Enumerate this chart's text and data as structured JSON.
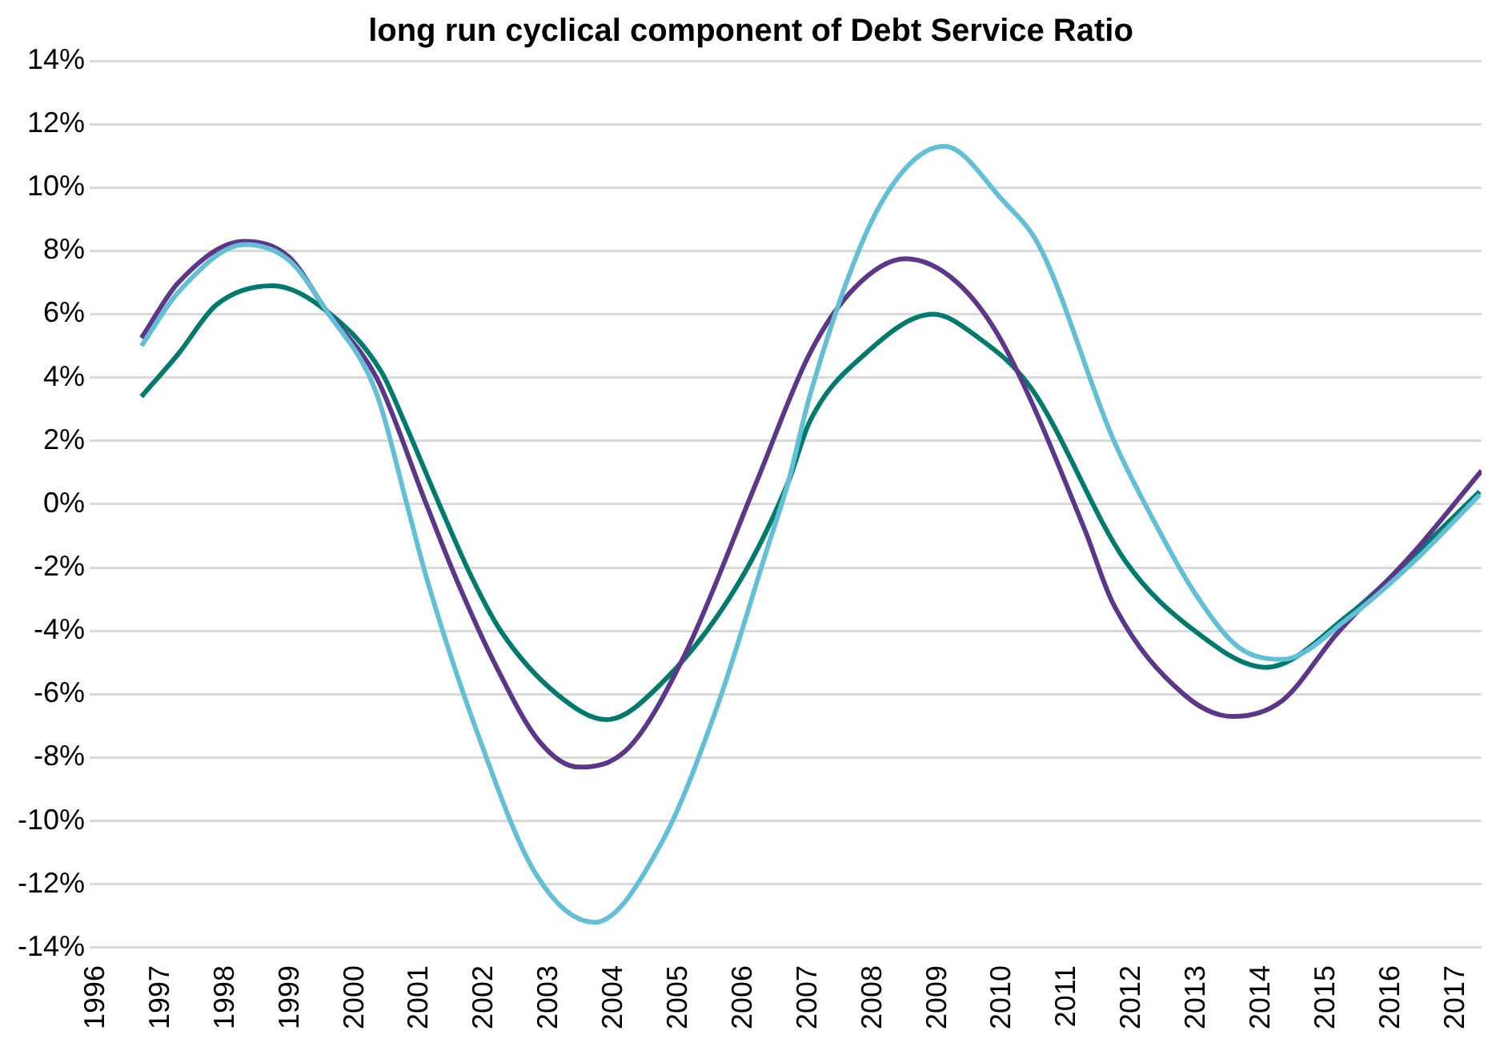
{
  "chart_data": {
    "type": "line",
    "title": "long run cyclical component of Debt Service Ratio",
    "grid": "y",
    "xlim": [
      1995.9,
      2017.4
    ],
    "xticks": [
      1996,
      1997,
      1998,
      1999,
      2000,
      2001,
      2002,
      2003,
      2004,
      2005,
      2006,
      2007,
      2008,
      2009,
      2010,
      2011,
      2012,
      2013,
      2014,
      2015,
      2016,
      2017
    ],
    "ylim": [
      -14,
      14
    ],
    "yticks": [
      {
        "value": -14,
        "label": "-14%"
      },
      {
        "value": -12,
        "label": "-12%"
      },
      {
        "value": -10,
        "label": "-10%"
      },
      {
        "value": -8,
        "label": "-8%"
      },
      {
        "value": -6,
        "label": "-6%"
      },
      {
        "value": -4,
        "label": "-4%"
      },
      {
        "value": -2,
        "label": "-2%"
      },
      {
        "value": 0,
        "label": "0%"
      },
      {
        "value": 2,
        "label": "2%"
      },
      {
        "value": 4,
        "label": "4%"
      },
      {
        "value": 6,
        "label": "6%"
      },
      {
        "value": 8,
        "label": "8%"
      },
      {
        "value": 10,
        "label": "10%"
      },
      {
        "value": 12,
        "label": "12%"
      },
      {
        "value": 14,
        "label": "14%"
      }
    ],
    "series": [
      {
        "color": "#62bfd6",
        "x": [
          1996.7,
          1997.27,
          1998.3,
          1998.98,
          1999.56,
          2000.33,
          2000.8,
          2001.1,
          2001.85,
          2002.8,
          2003.7,
          2004.73,
          2005.59,
          2006.35,
          2006.69,
          2007.02,
          2007.88,
          2008.5,
          2009.1,
          2010.0,
          2010.58,
          2011.7,
          2012.28,
          2012.97,
          2013.64,
          2014.32,
          2015.34,
          2016.36,
          2017.37
        ],
        "values": [
          5.0,
          6.7,
          8.2,
          7.7,
          6.1,
          3.5,
          0,
          -2.3,
          -7.0,
          -11.7,
          -13.2,
          -10.7,
          -6.4,
          -1.5,
          0.7,
          3.4,
          8.5,
          10.6,
          11.3,
          9.6,
          8.1,
          2.1,
          -0.3,
          -2.8,
          -4.5,
          -4.9,
          -3.6,
          -1.8,
          0.3
        ]
      },
      {
        "color": "#5c3788",
        "x": [
          1996.7,
          1997.27,
          1998.29,
          1998.98,
          1999.56,
          2000.33,
          2001.1,
          2001.55,
          2002.15,
          2002.85,
          2003.46,
          2004.22,
          2005.08,
          2006.2,
          2007.02,
          2007.7,
          2008.5,
          2009.3,
          2010.0,
          2011.27,
          2011.7,
          2012.8,
          2013.56,
          2014.32,
          2015.16,
          2016.36,
          2017.4
        ],
        "values": [
          5.25,
          7.0,
          8.3,
          7.8,
          6.1,
          4.0,
          0,
          -2.3,
          -5.0,
          -7.5,
          -8.3,
          -7.7,
          -4.8,
          0.7,
          4.75,
          6.8,
          7.75,
          7.0,
          5.1,
          -0.8,
          -3.1,
          -6.0,
          -6.7,
          -6.2,
          -4.1,
          -1.5,
          1.06
        ]
      },
      {
        "color": "#007a6c",
        "x": [
          1996.7,
          1997.27,
          1997.86,
          1998.72,
          1999.56,
          2000.4,
          2000.76,
          2001.3,
          2001.8,
          2002.25,
          2003.12,
          2003.89,
          2004.73,
          2005.92,
          2006.69,
          2007.02,
          2007.88,
          2008.93,
          2009.6,
          2010.43,
          2011.9,
          2012.97,
          2014.07,
          2015.34,
          2016.36,
          2017.37
        ],
        "values": [
          3.4,
          4.75,
          6.3,
          6.9,
          6.1,
          4.2,
          2.6,
          0,
          -2.3,
          -4.0,
          -6.0,
          -6.8,
          -5.66,
          -2.5,
          0.7,
          2.6,
          4.75,
          6.0,
          5.3,
          3.7,
          -1.8,
          -4.0,
          -5.15,
          -3.5,
          -1.6,
          0.4
        ]
      }
    ]
  }
}
